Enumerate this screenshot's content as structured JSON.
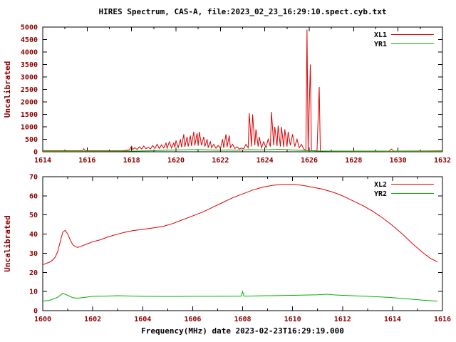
{
  "colors": {
    "line_red": "#dd0000",
    "line_green": "#00b000",
    "tick_text": "#8b0000",
    "text": "#000000",
    "border": "#000000",
    "background": "#ffffff"
  },
  "chart_data": [
    {
      "type": "line",
      "title": "HIRES Spectrum, CAS-A, file:2023_02_23_16:29:10.spect.cyb.txt",
      "ylabel": "Uncalibrated",
      "xlim": [
        1614,
        1632
      ],
      "ylim": [
        0,
        5000
      ],
      "xtick_step": 2,
      "xminor_step": 1,
      "ytick_step": 500,
      "grid": false,
      "legend_position": "top-right",
      "series": [
        {
          "name": "XL1",
          "color": "#dd0000",
          "points": [
            [
              1614.0,
              40
            ],
            [
              1615.0,
              40
            ],
            [
              1615.8,
              40
            ],
            [
              1615.85,
              120
            ],
            [
              1615.9,
              40
            ],
            [
              1616.3,
              40
            ],
            [
              1617.0,
              40
            ],
            [
              1617.6,
              40
            ],
            [
              1617.9,
              70
            ],
            [
              1618.0,
              220
            ],
            [
              1618.05,
              90
            ],
            [
              1618.15,
              160
            ],
            [
              1618.25,
              90
            ],
            [
              1618.35,
              200
            ],
            [
              1618.45,
              110
            ],
            [
              1618.55,
              230
            ],
            [
              1618.65,
              120
            ],
            [
              1618.75,
              180
            ],
            [
              1618.85,
              110
            ],
            [
              1618.95,
              250
            ],
            [
              1619.05,
              130
            ],
            [
              1619.15,
              300
            ],
            [
              1619.25,
              130
            ],
            [
              1619.35,
              280
            ],
            [
              1619.45,
              150
            ],
            [
              1619.55,
              350
            ],
            [
              1619.6,
              140
            ],
            [
              1619.7,
              400
            ],
            [
              1619.8,
              150
            ],
            [
              1619.9,
              350
            ],
            [
              1619.95,
              180
            ],
            [
              1620.0,
              450
            ],
            [
              1620.1,
              170
            ],
            [
              1620.2,
              500
            ],
            [
              1620.25,
              180
            ],
            [
              1620.35,
              700
            ],
            [
              1620.4,
              200
            ],
            [
              1620.5,
              600
            ],
            [
              1620.55,
              210
            ],
            [
              1620.65,
              650
            ],
            [
              1620.7,
              230
            ],
            [
              1620.8,
              800
            ],
            [
              1620.85,
              250
            ],
            [
              1620.95,
              750
            ],
            [
              1621.0,
              240
            ],
            [
              1621.05,
              800
            ],
            [
              1621.15,
              260
            ],
            [
              1621.25,
              600
            ],
            [
              1621.3,
              210
            ],
            [
              1621.4,
              500
            ],
            [
              1621.45,
              180
            ],
            [
              1621.55,
              400
            ],
            [
              1621.6,
              160
            ],
            [
              1621.7,
              300
            ],
            [
              1621.8,
              140
            ],
            [
              1621.9,
              250
            ],
            [
              1622.0,
              130
            ],
            [
              1622.1,
              500
            ],
            [
              1622.15,
              160
            ],
            [
              1622.25,
              700
            ],
            [
              1622.3,
              190
            ],
            [
              1622.4,
              650
            ],
            [
              1622.45,
              170
            ],
            [
              1622.55,
              300
            ],
            [
              1622.65,
              130
            ],
            [
              1622.75,
              200
            ],
            [
              1622.85,
              110
            ],
            [
              1622.95,
              150
            ],
            [
              1623.05,
              120
            ],
            [
              1623.15,
              300
            ],
            [
              1623.25,
              160
            ],
            [
              1623.3,
              1550
            ],
            [
              1623.4,
              210
            ],
            [
              1623.45,
              1500
            ],
            [
              1623.55,
              260
            ],
            [
              1623.6,
              900
            ],
            [
              1623.7,
              210
            ],
            [
              1623.75,
              600
            ],
            [
              1623.85,
              160
            ],
            [
              1623.95,
              400
            ],
            [
              1624.05,
              160
            ],
            [
              1624.15,
              500
            ],
            [
              1624.25,
              210
            ],
            [
              1624.3,
              1600
            ],
            [
              1624.4,
              260
            ],
            [
              1624.45,
              1000
            ],
            [
              1624.55,
              230
            ],
            [
              1624.6,
              1050
            ],
            [
              1624.7,
              210
            ],
            [
              1624.75,
              1000
            ],
            [
              1624.85,
              190
            ],
            [
              1624.9,
              900
            ],
            [
              1625.0,
              210
            ],
            [
              1625.05,
              800
            ],
            [
              1625.15,
              260
            ],
            [
              1625.25,
              700
            ],
            [
              1625.35,
              210
            ],
            [
              1625.45,
              500
            ],
            [
              1625.55,
              160
            ],
            [
              1625.65,
              300
            ],
            [
              1625.75,
              110
            ],
            [
              1625.85,
              60
            ],
            [
              1625.9,
              4900
            ],
            [
              1625.95,
              60
            ],
            [
              1626.05,
              3500
            ],
            [
              1626.1,
              45
            ],
            [
              1626.35,
              40
            ],
            [
              1626.45,
              2600
            ],
            [
              1626.5,
              30
            ],
            [
              1627.0,
              25
            ],
            [
              1628.0,
              25
            ],
            [
              1629.0,
              25
            ],
            [
              1629.6,
              25
            ],
            [
              1629.7,
              110
            ],
            [
              1629.8,
              25
            ],
            [
              1630.5,
              28
            ],
            [
              1631.2,
              30
            ],
            [
              1632.0,
              35
            ]
          ]
        },
        {
          "name": "YR1",
          "color": "#00b000",
          "points": [
            [
              1614.0,
              15
            ],
            [
              1615.5,
              15
            ],
            [
              1616.5,
              18
            ],
            [
              1617.5,
              22
            ],
            [
              1618.2,
              30
            ],
            [
              1618.8,
              40
            ],
            [
              1619.3,
              55
            ],
            [
              1619.8,
              65
            ],
            [
              1620.2,
              75
            ],
            [
              1620.7,
              85
            ],
            [
              1621.0,
              90
            ],
            [
              1621.4,
              75
            ],
            [
              1621.9,
              62
            ],
            [
              1622.3,
              72
            ],
            [
              1622.8,
              60
            ],
            [
              1623.3,
              85
            ],
            [
              1623.8,
              70
            ],
            [
              1624.2,
              82
            ],
            [
              1624.6,
              100
            ],
            [
              1625.0,
              85
            ],
            [
              1625.4,
              65
            ],
            [
              1625.9,
              45
            ],
            [
              1626.4,
              32
            ],
            [
              1627.0,
              22
            ],
            [
              1628.0,
              18
            ],
            [
              1629.5,
              15
            ],
            [
              1631.0,
              14
            ],
            [
              1632.0,
              14
            ]
          ]
        }
      ]
    },
    {
      "type": "line",
      "xlabel": "Frequency(MHz) date 2023-02-23T16:29:19.000",
      "ylabel": "Uncalibrated",
      "xlim": [
        1600,
        1616
      ],
      "ylim": [
        0,
        70
      ],
      "xtick_step": 2,
      "xminor_step": 1,
      "ytick_step": 10,
      "grid": false,
      "legend_position": "top-right",
      "series": [
        {
          "name": "XL2",
          "color": "#dd0000",
          "points": [
            [
              1600.0,
              24
            ],
            [
              1600.1,
              24.5
            ],
            [
              1600.2,
              25
            ],
            [
              1600.3,
              25.5
            ],
            [
              1600.4,
              26.5
            ],
            [
              1600.5,
              28
            ],
            [
              1600.6,
              31
            ],
            [
              1600.7,
              36
            ],
            [
              1600.8,
              41
            ],
            [
              1600.9,
              42
            ],
            [
              1601.0,
              40
            ],
            [
              1601.1,
              37
            ],
            [
              1601.2,
              34.5
            ],
            [
              1601.3,
              33.5
            ],
            [
              1601.4,
              33
            ],
            [
              1601.5,
              33.5
            ],
            [
              1601.6,
              34
            ],
            [
              1601.8,
              35
            ],
            [
              1602.0,
              36
            ],
            [
              1602.3,
              37
            ],
            [
              1602.6,
              38.5
            ],
            [
              1603.0,
              40
            ],
            [
              1603.3,
              41
            ],
            [
              1603.6,
              41.8
            ],
            [
              1604.0,
              42.5
            ],
            [
              1604.4,
              43.2
            ],
            [
              1604.8,
              44
            ],
            [
              1605.2,
              45.5
            ],
            [
              1605.6,
              47.5
            ],
            [
              1606.0,
              49.5
            ],
            [
              1606.4,
              51.5
            ],
            [
              1606.8,
              54
            ],
            [
              1607.2,
              56.5
            ],
            [
              1607.6,
              59
            ],
            [
              1608.0,
              61
            ],
            [
              1608.4,
              63
            ],
            [
              1608.8,
              64.5
            ],
            [
              1609.2,
              65.5
            ],
            [
              1609.6,
              66
            ],
            [
              1610.0,
              66
            ],
            [
              1610.4,
              65.5
            ],
            [
              1610.8,
              64.5
            ],
            [
              1611.2,
              63.5
            ],
            [
              1611.6,
              62
            ],
            [
              1612.0,
              60
            ],
            [
              1612.4,
              57.5
            ],
            [
              1612.8,
              55
            ],
            [
              1613.2,
              52
            ],
            [
              1613.6,
              48.5
            ],
            [
              1614.0,
              44.5
            ],
            [
              1614.4,
              40
            ],
            [
              1614.8,
              35
            ],
            [
              1615.2,
              30.5
            ],
            [
              1615.5,
              27.5
            ],
            [
              1615.8,
              25.5
            ]
          ]
        },
        {
          "name": "YR2",
          "color": "#00b000",
          "points": [
            [
              1600.0,
              5
            ],
            [
              1600.3,
              5.5
            ],
            [
              1600.6,
              7
            ],
            [
              1600.8,
              9
            ],
            [
              1601.0,
              8
            ],
            [
              1601.2,
              6.8
            ],
            [
              1601.4,
              6.5
            ],
            [
              1601.6,
              6.8
            ],
            [
              1602.0,
              7.5
            ],
            [
              1602.5,
              7.6
            ],
            [
              1603.0,
              7.8
            ],
            [
              1604.0,
              7.5
            ],
            [
              1605.0,
              7.4
            ],
            [
              1606.0,
              7.5
            ],
            [
              1607.0,
              7.5
            ],
            [
              1607.9,
              7.6
            ],
            [
              1607.95,
              7.6
            ],
            [
              1608.0,
              10
            ],
            [
              1608.05,
              7.6
            ],
            [
              1609.0,
              7.8
            ],
            [
              1610.0,
              8
            ],
            [
              1611.0,
              8.3
            ],
            [
              1611.4,
              8.6
            ],
            [
              1611.6,
              8.3
            ],
            [
              1612.0,
              8
            ],
            [
              1613.0,
              7.5
            ],
            [
              1613.8,
              7
            ],
            [
              1614.5,
              6.3
            ],
            [
              1615.2,
              5.5
            ],
            [
              1615.8,
              5
            ]
          ]
        }
      ]
    }
  ]
}
